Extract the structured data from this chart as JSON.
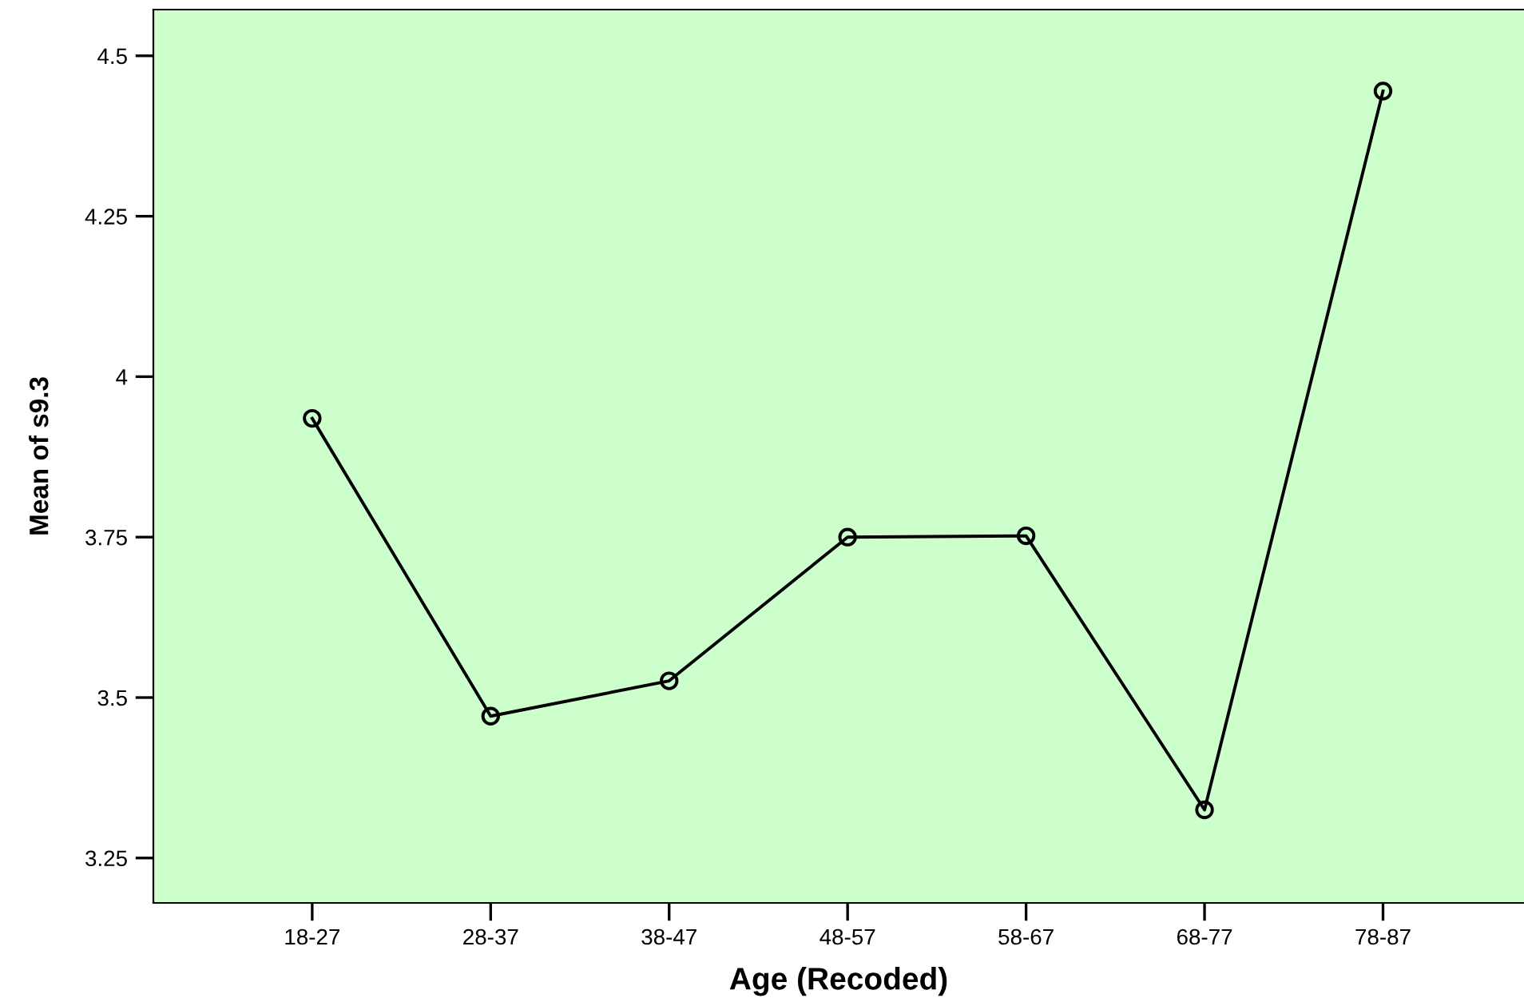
{
  "chart_data": {
    "type": "line",
    "xlabel": "Age (Recoded)",
    "ylabel": "Mean of s9.3",
    "categories": [
      "18-27",
      "28-37",
      "38-47",
      "48-57",
      "58-67",
      "68-77",
      "78-87"
    ],
    "series": [
      {
        "color": "#000000",
        "values": [
          3.935,
          3.471,
          3.526,
          3.75,
          3.752,
          3.325,
          4.445
        ]
      }
    ],
    "ylim": [
      3.18,
      4.572
    ],
    "yticks": [
      3.25,
      3.5,
      3.75,
      4,
      4.25,
      4.5
    ],
    "marker": "circle",
    "line_style": "solid",
    "grid": false,
    "legend": false
  }
}
